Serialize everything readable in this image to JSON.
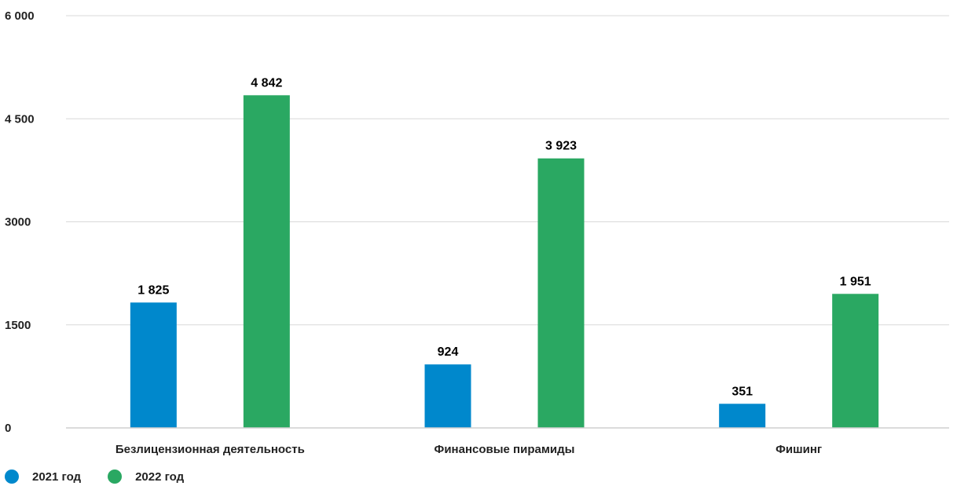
{
  "chart_data": {
    "type": "bar",
    "categories": [
      "Безлицензионная деятельность",
      "Финансовые пирамиды",
      "Фишинг"
    ],
    "series": [
      {
        "name": "2021 год",
        "values": [
          1825,
          924,
          351
        ],
        "labels": [
          "1 825",
          "924",
          "351"
        ],
        "color": "#0088cc"
      },
      {
        "name": "2022 год",
        "values": [
          4842,
          3923,
          1951
        ],
        "labels": [
          "4 842",
          "3 923",
          "1 951"
        ],
        "color": "#2aa862"
      }
    ],
    "yticks": [
      0,
      1500,
      3000,
      4500,
      6000
    ],
    "ytick_labels": [
      "0",
      "1500",
      "3000",
      "4 500",
      "6 000"
    ],
    "ylim": [
      0,
      6000
    ],
    "grid": true,
    "legend": "bottom-left",
    "title": "",
    "xlabel": "",
    "ylabel": ""
  }
}
